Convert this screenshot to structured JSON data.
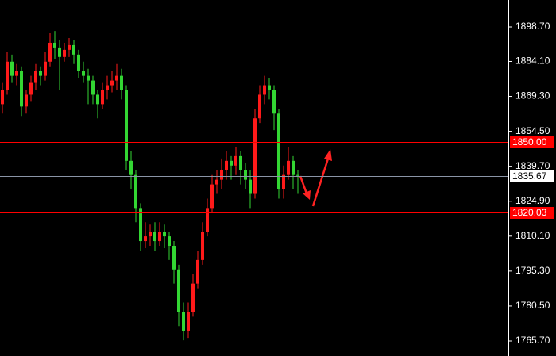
{
  "chart_data": {
    "type": "candlestick",
    "up_color": "#ff1a1a",
    "down_color": "#33d633",
    "ylim": [
      1759.32,
      1910.12
    ],
    "yticks": [
      {
        "value": 1898.7,
        "label": "1898.70"
      },
      {
        "value": 1884.1,
        "label": "1884.10"
      },
      {
        "value": 1869.3,
        "label": "1869.30"
      },
      {
        "value": 1854.5,
        "label": "1854.50"
      },
      {
        "value": 1839.7,
        "label": "1839.70"
      },
      {
        "value": 1824.9,
        "label": "1824.90"
      },
      {
        "value": 1810.1,
        "label": "1810.10"
      },
      {
        "value": 1795.3,
        "label": "1795.30"
      },
      {
        "value": 1780.5,
        "label": "1780.50"
      },
      {
        "value": 1765.7,
        "label": "1765.70"
      }
    ],
    "levels": [
      {
        "value": 1850,
        "label": "1850.00",
        "color": "#ff0000"
      },
      {
        "value": 1835.67,
        "label": "1835.67",
        "color": "#8a94a6"
      },
      {
        "value": 1820.03,
        "label": "1820.03",
        "color": "#ff0000"
      }
    ],
    "open": [
      1866,
      1872,
      1884,
      1878,
      1880,
      1865,
      1870,
      1875,
      1880,
      1878,
      1884,
      1892,
      1890,
      1886,
      1889,
      1891,
      1887,
      1880,
      1878,
      1876,
      1870,
      1866,
      1872,
      1874,
      1876,
      1878,
      1872,
      1842,
      1836,
      1822,
      1808,
      1810,
      1812,
      1808,
      1812,
      1810,
      1806,
      1796,
      1778,
      1770,
      1778,
      1790,
      1800,
      1812,
      1822,
      1832,
      1834,
      1838,
      1842,
      1840,
      1844,
      1838,
      1834,
      1828,
      1860,
      1870,
      1874,
      1872,
      1862,
      1830,
      1836,
      1842,
      1836
    ],
    "high": [
      1875,
      1888,
      1887,
      1883,
      1882,
      1872,
      1878,
      1883,
      1882,
      1888,
      1896,
      1897,
      1893,
      1892,
      1894,
      1893,
      1889,
      1884,
      1881,
      1878,
      1872,
      1875,
      1878,
      1880,
      1883,
      1881,
      1874,
      1846,
      1838,
      1824,
      1816,
      1815,
      1816,
      1816,
      1815,
      1812,
      1808,
      1798,
      1782,
      1782,
      1794,
      1804,
      1816,
      1826,
      1836,
      1838,
      1843,
      1846,
      1844,
      1848,
      1846,
      1841,
      1838,
      1864,
      1874,
      1878,
      1877,
      1874,
      1864,
      1840,
      1848,
      1844,
      1838
    ],
    "low": [
      1862,
      1870,
      1875,
      1874,
      1861,
      1862,
      1867,
      1872,
      1874,
      1876,
      1882,
      1885,
      1872,
      1884,
      1886,
      1883,
      1877,
      1875,
      1866,
      1866,
      1860,
      1864,
      1868,
      1871,
      1872,
      1868,
      1838,
      1830,
      1816,
      1804,
      1805,
      1806,
      1804,
      1806,
      1805,
      1800,
      1790,
      1772,
      1766,
      1767,
      1776,
      1788,
      1798,
      1810,
      1820,
      1828,
      1830,
      1834,
      1834,
      1836,
      1832,
      1830,
      1822,
      1826,
      1858,
      1866,
      1868,
      1855,
      1826,
      1826,
      1834,
      1830,
      1828
    ],
    "close": [
      1872,
      1884,
      1878,
      1880,
      1865,
      1870,
      1875,
      1880,
      1878,
      1884,
      1892,
      1890,
      1886,
      1889,
      1891,
      1887,
      1880,
      1878,
      1876,
      1870,
      1866,
      1872,
      1874,
      1876,
      1878,
      1872,
      1842,
      1836,
      1822,
      1808,
      1810,
      1812,
      1808,
      1812,
      1810,
      1806,
      1796,
      1778,
      1770,
      1778,
      1790,
      1800,
      1812,
      1822,
      1832,
      1834,
      1838,
      1842,
      1840,
      1844,
      1838,
      1834,
      1828,
      1860,
      1870,
      1874,
      1872,
      1862,
      1830,
      1836,
      1842,
      1836,
      1835.67
    ]
  }
}
